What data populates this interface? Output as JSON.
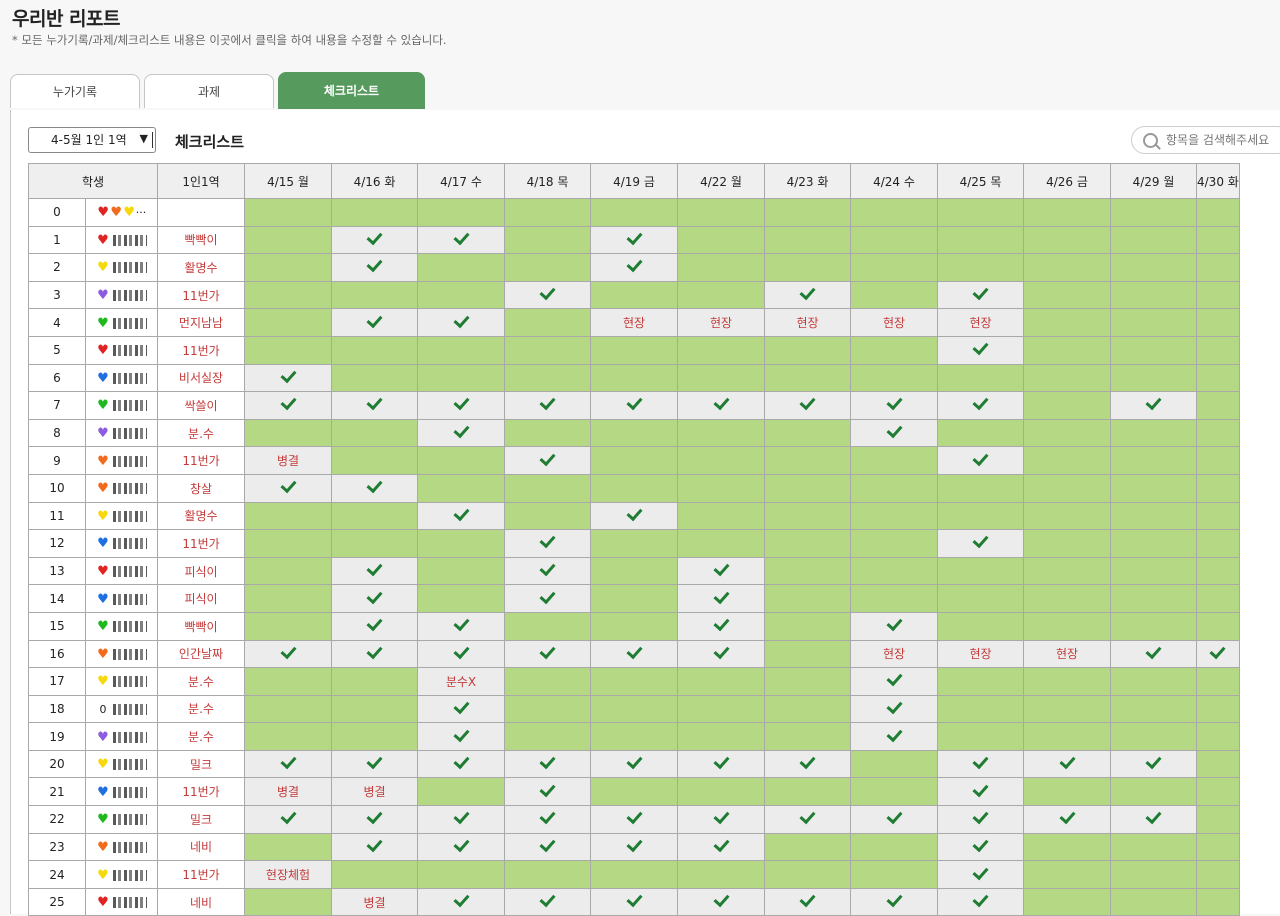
{
  "page": {
    "title": "우리반 리포트",
    "subtitle": "* 모든 누가기록/과제/체크리스트 내용은 이곳에서 클릭을 하여 내용을 수정할 수 있습니다."
  },
  "tabs": [
    {
      "label": "누가기록",
      "active": false
    },
    {
      "label": "과제",
      "active": false
    },
    {
      "label": "체크리스트",
      "active": true
    }
  ],
  "toolbar": {
    "period_select": "4-5월 1인 1역",
    "section_title": "체크리스트",
    "search_placeholder": "항목을 검색해주세요"
  },
  "colors": {
    "accent": "#569a5e",
    "cell_green": "#b5d884",
    "cell_gray": "#ececec",
    "text_red": "#c43a3a",
    "check": "#1e7d32"
  },
  "table": {
    "headers": [
      "학생",
      "1인1역",
      "4/15 월",
      "4/16 화",
      "4/17 수",
      "4/18 목",
      "4/19 금",
      "4/22 월",
      "4/23 화",
      "4/24 수",
      "4/25 목",
      "4/26 금",
      "4/29 월",
      "4/30 화"
    ],
    "rows": [
      {
        "num": "0",
        "heart": "multi",
        "task": "",
        "cells": [
          "g",
          "g",
          "g",
          "g",
          "g",
          "g",
          "g",
          "g",
          "g",
          "g",
          "g",
          "g"
        ]
      },
      {
        "num": "1",
        "heart": "red",
        "task": "빡빡이",
        "cells": [
          "g",
          "v",
          "v",
          "g",
          "v",
          "g",
          "g",
          "g",
          "g",
          "g",
          "g",
          "g"
        ]
      },
      {
        "num": "2",
        "heart": "yellow",
        "task": "활명수",
        "cells": [
          "g",
          "v",
          "g",
          "g",
          "v",
          "g",
          "g",
          "g",
          "g",
          "g",
          "g",
          "g"
        ]
      },
      {
        "num": "3",
        "heart": "purple",
        "task": "11번가",
        "cells": [
          "g",
          "g",
          "g",
          "v",
          "g",
          "g",
          "v",
          "g",
          "v",
          "g",
          "g",
          "g"
        ]
      },
      {
        "num": "4",
        "heart": "green",
        "task": "먼지남남",
        "cells": [
          "g",
          "v",
          "v",
          "g",
          "현장",
          "현장",
          "현장",
          "현장",
          "현장",
          "g",
          "g",
          "g"
        ]
      },
      {
        "num": "5",
        "heart": "red",
        "task": "11번가",
        "cells": [
          "g",
          "g",
          "g",
          "g",
          "g",
          "g",
          "g",
          "g",
          "v",
          "g",
          "g",
          "g"
        ]
      },
      {
        "num": "6",
        "heart": "blue",
        "task": "비서실장",
        "cells": [
          "v",
          "g",
          "g",
          "g",
          "g",
          "g",
          "g",
          "g",
          "g",
          "g",
          "g",
          "g"
        ]
      },
      {
        "num": "7",
        "heart": "green",
        "task": "싹쓸이",
        "cells": [
          "v",
          "v",
          "v",
          "v",
          "v",
          "v",
          "v",
          "v",
          "v",
          "g",
          "v",
          "g"
        ]
      },
      {
        "num": "8",
        "heart": "purple",
        "task": "분.수",
        "cells": [
          "g",
          "g",
          "v",
          "g",
          "g",
          "g",
          "g",
          "v",
          "g",
          "g",
          "g",
          "g"
        ]
      },
      {
        "num": "9",
        "heart": "orange",
        "task": "11번가",
        "cells": [
          "병결",
          "g",
          "g",
          "v",
          "g",
          "g",
          "g",
          "g",
          "v",
          "g",
          "g",
          "g"
        ]
      },
      {
        "num": "10",
        "heart": "orange",
        "task": "창살",
        "cells": [
          "v",
          "v",
          "g",
          "g",
          "g",
          "g",
          "g",
          "g",
          "g",
          "g",
          "g",
          "g"
        ]
      },
      {
        "num": "11",
        "heart": "yellow",
        "task": "활명수",
        "cells": [
          "g",
          "g",
          "v",
          "g",
          "v",
          "g",
          "g",
          "g",
          "g",
          "g",
          "g",
          "g"
        ]
      },
      {
        "num": "12",
        "heart": "blue",
        "task": "11번가",
        "cells": [
          "g",
          "g",
          "g",
          "v",
          "g",
          "g",
          "g",
          "g",
          "v",
          "g",
          "g",
          "g"
        ]
      },
      {
        "num": "13",
        "heart": "red",
        "task": "피식이",
        "cells": [
          "g",
          "v",
          "g",
          "v",
          "g",
          "v",
          "g",
          "g",
          "g",
          "g",
          "g",
          "g"
        ]
      },
      {
        "num": "14",
        "heart": "blue",
        "task": "피식이",
        "cells": [
          "g",
          "v",
          "g",
          "v",
          "g",
          "v",
          "g",
          "g",
          "g",
          "g",
          "g",
          "g"
        ]
      },
      {
        "num": "15",
        "heart": "green",
        "task": "빡빡이",
        "cells": [
          "g",
          "v",
          "v",
          "g",
          "g",
          "v",
          "g",
          "v",
          "g",
          "g",
          "g",
          "g"
        ]
      },
      {
        "num": "16",
        "heart": "orange",
        "task": "인간날짜",
        "cells": [
          "v",
          "v",
          "v",
          "v",
          "v",
          "v",
          "g",
          "현장",
          "현장",
          "현장",
          "v",
          "v"
        ]
      },
      {
        "num": "17",
        "heart": "yellow",
        "task": "분.수",
        "cells": [
          "g",
          "g",
          "분수X",
          "g",
          "g",
          "g",
          "g",
          "v",
          "g",
          "g",
          "g",
          "g"
        ]
      },
      {
        "num": "18",
        "heart": "zero",
        "task": "분.수",
        "cells": [
          "g",
          "g",
          "v",
          "g",
          "g",
          "g",
          "g",
          "v",
          "g",
          "g",
          "g",
          "g"
        ]
      },
      {
        "num": "19",
        "heart": "purple",
        "task": "분.수",
        "cells": [
          "g",
          "g",
          "v",
          "g",
          "g",
          "g",
          "g",
          "v",
          "g",
          "g",
          "g",
          "g"
        ]
      },
      {
        "num": "20",
        "heart": "yellow",
        "task": "밀크",
        "cells": [
          "v",
          "v",
          "v",
          "v",
          "v",
          "v",
          "v",
          "g",
          "v",
          "v",
          "v",
          "g"
        ]
      },
      {
        "num": "21",
        "heart": "blue",
        "task": "11번가",
        "cells": [
          "병결",
          "병결",
          "g",
          "v",
          "g",
          "g",
          "g",
          "g",
          "v",
          "g",
          "g",
          "g"
        ]
      },
      {
        "num": "22",
        "heart": "green",
        "task": "밀크",
        "cells": [
          "v",
          "v",
          "v",
          "v",
          "v",
          "v",
          "v",
          "v",
          "v",
          "v",
          "v",
          "g"
        ]
      },
      {
        "num": "23",
        "heart": "orange",
        "task": "네비",
        "cells": [
          "g",
          "v",
          "v",
          "v",
          "v",
          "v",
          "g",
          "g",
          "v",
          "g",
          "g",
          "g"
        ]
      },
      {
        "num": "24",
        "heart": "yellow",
        "task": "11번가",
        "cells": [
          "현장체험",
          "g",
          "g",
          "g",
          "g",
          "g",
          "g",
          "g",
          "v",
          "g",
          "g",
          "g"
        ]
      },
      {
        "num": "25",
        "heart": "red",
        "task": "네비",
        "cells": [
          "g",
          "병결",
          "v",
          "v",
          "v",
          "v",
          "v",
          "v",
          "v",
          "g",
          "g",
          "g"
        ]
      }
    ]
  }
}
